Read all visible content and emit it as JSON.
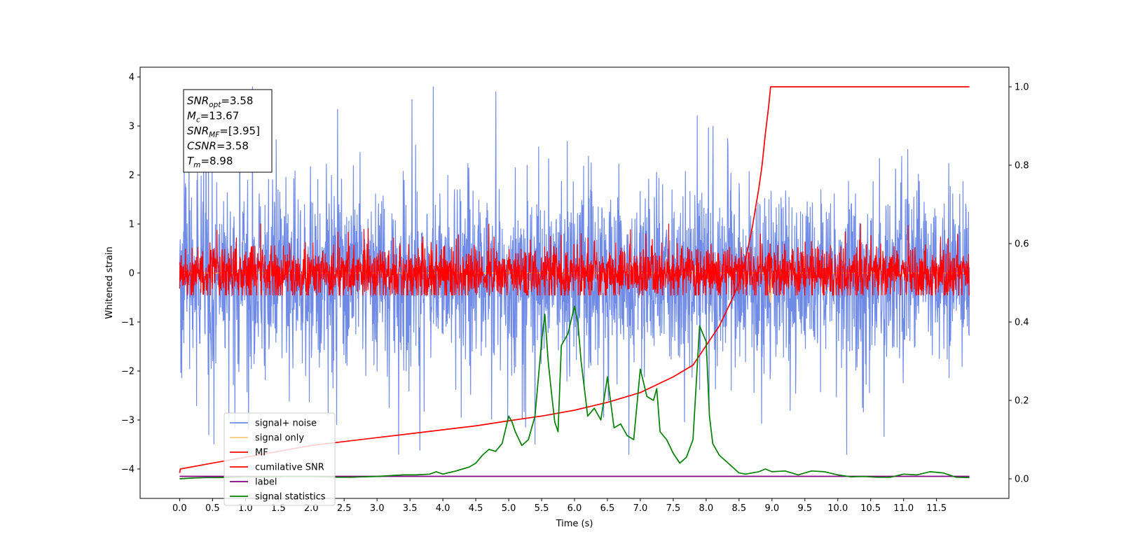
{
  "chart_data": {
    "type": "line",
    "xlabel": "Time (s)",
    "ylabel": "Whitened strain",
    "xlim": [
      -0.6,
      12.6
    ],
    "ylim": [
      -4.6,
      4.2
    ],
    "y2lim": [
      -0.05,
      1.05
    ],
    "x_ticks": [
      0.0,
      0.5,
      1.0,
      1.5,
      2.0,
      2.5,
      3.0,
      3.5,
      4.0,
      4.5,
      5.0,
      5.5,
      6.0,
      6.5,
      7.0,
      7.5,
      8.0,
      8.5,
      9.0,
      9.5,
      10.0,
      10.5,
      11.0,
      11.5
    ],
    "x_tick_labels": [
      "0.0",
      "0.5",
      "1.0",
      "1.5",
      "2.0",
      "2.5",
      "3.0",
      "3.5",
      "4.0",
      "4.5",
      "5.0",
      "5.5",
      "6.0",
      "6.5",
      "7.0",
      "7.5",
      "8.0",
      "8.5",
      "9.0",
      "9.5",
      "10.0",
      "10.5",
      "11.0",
      "11.5"
    ],
    "y_ticks": [
      -4,
      -3,
      -2,
      -1,
      0,
      1,
      2,
      3,
      4
    ],
    "y_tick_labels": [
      "−4",
      "−3",
      "−2",
      "−1",
      "0",
      "1",
      "2",
      "3",
      "4"
    ],
    "y2_ticks": [
      0.0,
      0.2,
      0.4,
      0.6,
      0.8,
      1.0
    ],
    "y2_tick_labels": [
      "0.0",
      "0.2",
      "0.4",
      "0.6",
      "0.8",
      "1.0"
    ],
    "grid": false,
    "legend_position": "lower-left",
    "annotation": [
      {
        "base": "SNR",
        "sub": "opt",
        "value": "=3.58"
      },
      {
        "base": "M",
        "sub": "c",
        "value": "=13.67"
      },
      {
        "base": "SNR",
        "sub": "MF",
        "value": "=[3.95]"
      },
      {
        "base": "CSNR",
        "sub": "",
        "value": "=3.58"
      },
      {
        "base": "T",
        "sub": "m",
        "value": "=8.98"
      }
    ],
    "series": [
      {
        "name": "signal+ noise",
        "color": "#6f8be6",
        "axis": "left",
        "kind": "noise",
        "x_range": [
          0,
          12
        ],
        "center": -0.05,
        "amplitude": 1.5,
        "peak_max": 3.8,
        "peak_min": -3.7
      },
      {
        "name": "signal only",
        "color": "#f5c77e",
        "axis": "left",
        "kind": "line",
        "x": [
          0,
          8.9,
          8.95,
          8.98,
          9.0,
          12
        ],
        "y": [
          0,
          0,
          -0.3,
          -0.6,
          0,
          0
        ]
      },
      {
        "name": "MF",
        "color": "#ff0000",
        "axis": "left",
        "kind": "noise",
        "x_range": [
          0,
          12
        ],
        "center": 0.0,
        "amplitude": 0.45,
        "peak_max": 1.0,
        "peak_min": -0.45
      },
      {
        "name": "cumilative SNR",
        "color": "#ff0000",
        "axis": "right",
        "kind": "line",
        "x": [
          0,
          0.01,
          0.5,
          1.0,
          1.5,
          2.0,
          2.5,
          3.0,
          3.5,
          4.0,
          4.5,
          5.0,
          5.5,
          6.0,
          6.5,
          7.0,
          7.5,
          7.8,
          8.0,
          8.2,
          8.4,
          8.5,
          8.6,
          8.7,
          8.8,
          8.85,
          8.9,
          8.95,
          8.98,
          9.0,
          12.0
        ],
        "y": [
          0.015,
          0.025,
          0.04,
          0.055,
          0.07,
          0.085,
          0.095,
          0.105,
          0.115,
          0.125,
          0.135,
          0.148,
          0.16,
          0.175,
          0.195,
          0.22,
          0.26,
          0.29,
          0.34,
          0.39,
          0.46,
          0.5,
          0.56,
          0.64,
          0.74,
          0.8,
          0.88,
          0.95,
          1.0,
          1.0,
          1.0
        ]
      },
      {
        "name": "label",
        "color": "#800080",
        "axis": "left",
        "kind": "line",
        "x": [
          0,
          12
        ],
        "y": [
          -4.15,
          -4.15
        ]
      },
      {
        "name": "signal statistics",
        "color": "#008000",
        "axis": "right",
        "kind": "line",
        "x": [
          0,
          0.2,
          0.4,
          0.6,
          0.8,
          1.0,
          1.2,
          1.4,
          1.6,
          1.8,
          2.0,
          2.2,
          2.4,
          2.6,
          2.8,
          3.0,
          3.2,
          3.4,
          3.6,
          3.8,
          3.9,
          4.0,
          4.1,
          4.2,
          4.3,
          4.4,
          4.5,
          4.6,
          4.7,
          4.8,
          4.9,
          5.0,
          5.05,
          5.1,
          5.2,
          5.3,
          5.4,
          5.5,
          5.55,
          5.6,
          5.65,
          5.7,
          5.75,
          5.8,
          5.9,
          6.0,
          6.05,
          6.1,
          6.2,
          6.3,
          6.4,
          6.5,
          6.6,
          6.7,
          6.8,
          6.9,
          7.0,
          7.1,
          7.2,
          7.25,
          7.3,
          7.4,
          7.5,
          7.6,
          7.7,
          7.8,
          7.9,
          8.0,
          8.05,
          8.1,
          8.2,
          8.3,
          8.4,
          8.5,
          8.6,
          8.7,
          8.8,
          8.9,
          9.0,
          9.2,
          9.4,
          9.6,
          9.8,
          10.0,
          10.2,
          10.4,
          10.6,
          10.8,
          11.0,
          11.2,
          11.4,
          11.6,
          11.8,
          12.0
        ],
        "y": [
          0.0,
          0.002,
          0.003,
          0.003,
          0.004,
          0.005,
          0.005,
          0.005,
          0.006,
          0.006,
          0.006,
          0.005,
          0.004,
          0.004,
          0.005,
          0.006,
          0.008,
          0.01,
          0.01,
          0.012,
          0.018,
          0.012,
          0.016,
          0.02,
          0.025,
          0.03,
          0.04,
          0.06,
          0.075,
          0.07,
          0.09,
          0.16,
          0.145,
          0.12,
          0.085,
          0.1,
          0.16,
          0.35,
          0.42,
          0.3,
          0.22,
          0.145,
          0.12,
          0.34,
          0.37,
          0.44,
          0.4,
          0.3,
          0.16,
          0.18,
          0.15,
          0.26,
          0.13,
          0.14,
          0.11,
          0.1,
          0.28,
          0.21,
          0.2,
          0.23,
          0.12,
          0.1,
          0.065,
          0.04,
          0.055,
          0.1,
          0.39,
          0.35,
          0.16,
          0.09,
          0.06,
          0.045,
          0.03,
          0.015,
          0.012,
          0.015,
          0.018,
          0.025,
          0.018,
          0.02,
          0.01,
          0.02,
          0.018,
          0.01,
          0.005,
          0.006,
          0.004,
          0.004,
          0.012,
          0.01,
          0.018,
          0.015,
          0.004,
          0.003
        ]
      }
    ]
  }
}
